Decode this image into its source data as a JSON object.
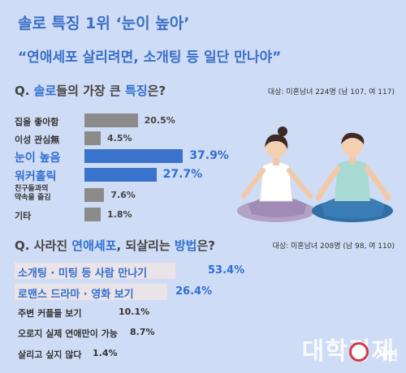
{
  "header": {
    "title_line1": "솔로 특징 1위 ‘눈이 높아’",
    "title_line2": "“연애세포 살리려면, 소개팅 등 일단 만나야”"
  },
  "q1": {
    "prefix": "Q. ",
    "hl1": "솔로",
    "mid": "들의 가장 큰 ",
    "hl2": "특징",
    "suffix": "은?",
    "respondents": "대상: 미혼남녀 224명 (남 107, 여 117)"
  },
  "q2": {
    "prefix": "Q. 사라진 ",
    "hl1": "연애세포",
    "mid": ", 되살리는 ",
    "hl2": "방법",
    "suffix": "은?",
    "respondents": "대상: 미혼남녀 208명 (남 98, 여 110)"
  },
  "chart_data": [
    {
      "type": "bar",
      "categories": [
        "집을 좋아함",
        "이성 관심無",
        "눈이 높음",
        "워커홀릭",
        "친구들과의 약속을 즐김",
        "기타"
      ],
      "category_lines": [
        [
          "집을 좋아함"
        ],
        [
          "이성 관심無"
        ],
        [
          "눈이 높음"
        ],
        [
          "워커홀릭"
        ],
        [
          "친구들과의",
          "약속을 즐김"
        ],
        [
          "기타"
        ]
      ],
      "values": [
        20.5,
        4.5,
        37.9,
        27.7,
        7.6,
        1.8
      ],
      "value_labels": [
        "20.5%",
        "4.5%",
        "37.9%",
        "27.7%",
        "7.6%",
        "1.8%"
      ],
      "highlight": [
        false,
        false,
        true,
        true,
        false,
        false
      ],
      "colors": {
        "default": "#8b8b8b",
        "highlight": "#3a73cc"
      },
      "orientation": "horizontal",
      "xlim": [
        0,
        40
      ]
    },
    {
      "type": "bar",
      "categories": [
        "소개팅 · 미팅 등 사람 만나기",
        "로맨스 드라마 · 영화 보기",
        "주변 커플들 보기",
        "오로지 실제 연애만이 가능",
        "살리고 싶지 않다"
      ],
      "values": [
        53.4,
        26.4,
        10.1,
        8.7,
        1.4
      ],
      "value_labels": [
        "53.4%",
        "26.4%",
        "10.1%",
        "8.7%",
        "1.4%"
      ],
      "highlight": [
        true,
        true,
        false,
        false,
        false
      ],
      "colors": {
        "highlight_bg": "#eae3e7",
        "highlight_text": "#2f6fd1"
      },
      "orientation": "horizontal"
    }
  ],
  "logo": {
    "main": "대학경제",
    "sub": "가연"
  }
}
